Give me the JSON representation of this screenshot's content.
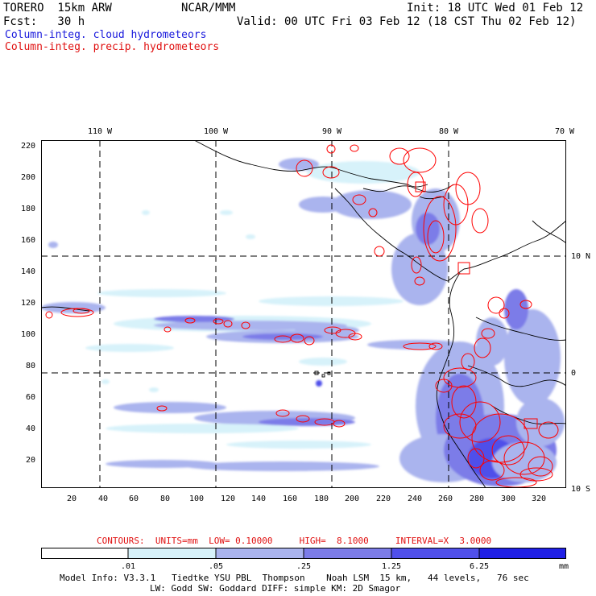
{
  "header": {
    "model": "TORERO  15km ARW",
    "org": "NCAR/MMM",
    "init": "Init: 18 UTC Wed 01 Feb 12",
    "fcst": "Fcst:   30 h",
    "valid": "Valid: 00 UTC Fri 03 Feb 12 (18 CST Thu 02 Feb 12)",
    "line_cloud": "Column-integ. cloud hydrometeors",
    "line_precip": "Column-integ. precip. hydrometeors"
  },
  "colors": {
    "cloud": "#1a1adc",
    "precip": "#e01010",
    "contour": "#ff0000",
    "coast": "#000000",
    "shade": [
      "#ffffff",
      "#d7f2fa",
      "#aab4ee",
      "#7c7ce8",
      "#5050ea",
      "#2020e6"
    ]
  },
  "map": {
    "top_lon_labels": [
      "110 W",
      "100 W",
      "90 W",
      "80 W",
      "70 W"
    ],
    "right_lat_labels": [
      "10 N",
      "0",
      "10 S"
    ],
    "y_ticks": [
      "220",
      "200",
      "180",
      "160",
      "140",
      "120",
      "100",
      "80",
      "60",
      "40",
      "20"
    ],
    "x_ticks": [
      "20",
      "40",
      "60",
      "80",
      "100",
      "120",
      "140",
      "160",
      "180",
      "200",
      "220",
      "240",
      "260",
      "280",
      "300",
      "320"
    ]
  },
  "contour_info": "CONTOURS:  UNITS=mm  LOW= 0.10000     HIGH=  8.1000     INTERVAL=X  3.0000",
  "legend": {
    "labels": [
      ".01",
      ".05",
      ".25",
      "1.25",
      "6.25"
    ],
    "units": "mm"
  },
  "footer": {
    "line1": "Model Info: V3.3.1   Tiedtke YSU PBL  Thompson    Noah LSM  15 km,   44 levels,   76 sec",
    "line2": "LW: Godd SW: Goddard DIFF: simple KM: 2D Smagor"
  }
}
